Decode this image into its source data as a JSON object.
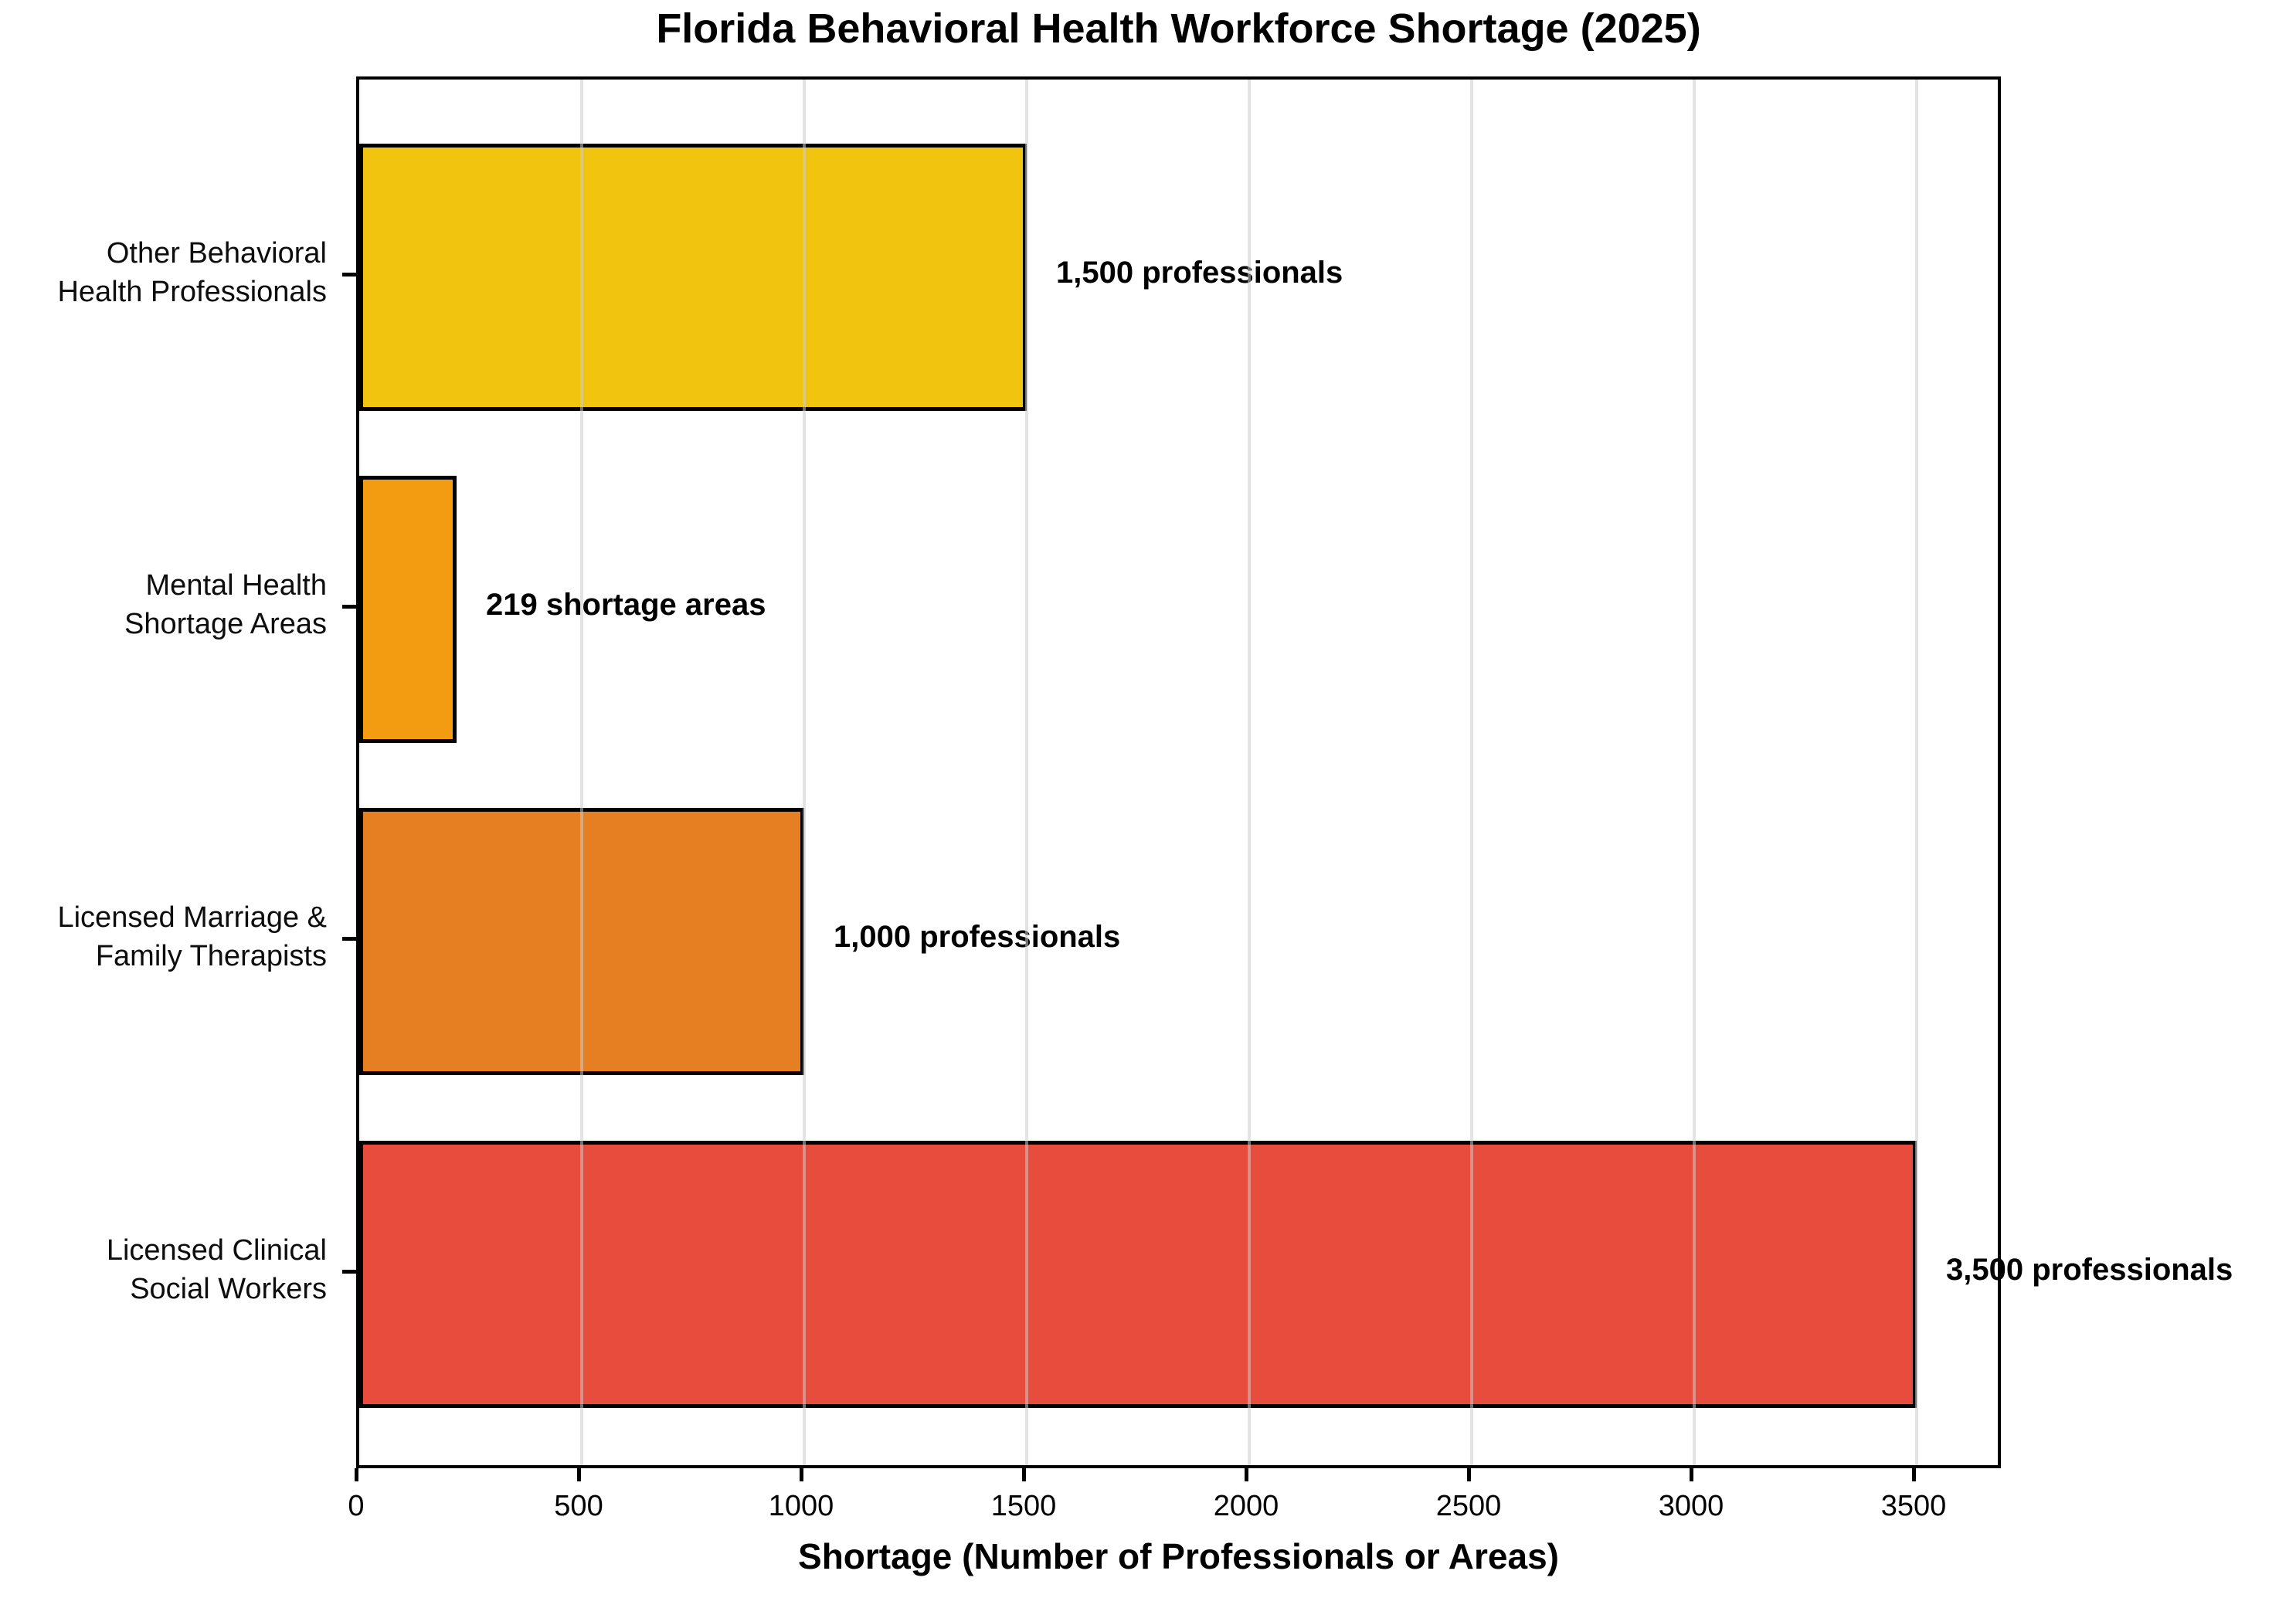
{
  "chart_data": {
    "type": "bar",
    "orientation": "horizontal",
    "title": "Florida Behavioral Health Workforce Shortage (2025)",
    "xlabel": "Shortage (Number of Professionals or Areas)",
    "ylabel": "",
    "categories": [
      "Other Behavioral\nHealth Professionals",
      "Mental Health\nShortage Areas",
      "Licensed Marriage &\nFamily Therapists",
      "Licensed Clinical\nSocial Workers"
    ],
    "values": [
      1500,
      219,
      1000,
      3500
    ],
    "bar_labels": [
      "1,500 professionals",
      "219 shortage areas",
      "1,000 professionals",
      "3,500 professionals"
    ],
    "bar_colors": [
      "#F1C40F",
      "#F39C12",
      "#E67E22",
      "#E74C3C"
    ],
    "bar_edge_color": "#000000",
    "xticks": [
      0,
      500,
      1000,
      1500,
      2000,
      2500,
      3000,
      3500
    ],
    "xlim": [
      0,
      3696
    ],
    "grid": true,
    "gridline_color": "#cccccc",
    "legend_position": "none",
    "background_color": "#ffffff",
    "text_color": "#000000"
  }
}
